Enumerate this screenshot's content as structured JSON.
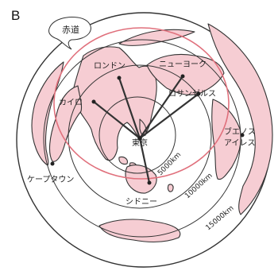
{
  "panel_label": "B",
  "equator_label": "赤道",
  "center_city": "東京",
  "cities": {
    "london": "ロンドン",
    "newyork": "ニューヨーク",
    "cairo": "カイロ",
    "losangeles": "ロサンゼルス",
    "buenosaires_1": "ブエノス",
    "buenosaires_2": "アイレス",
    "capetown": "ケープタウン",
    "sydney": "シドニー"
  },
  "distance_rings": {
    "r5000": "5000km",
    "r10000": "10000km",
    "r15000": "15000km"
  },
  "colors": {
    "land": "#f6cdd3",
    "equator": "#e0707c",
    "line": "#333333"
  }
}
